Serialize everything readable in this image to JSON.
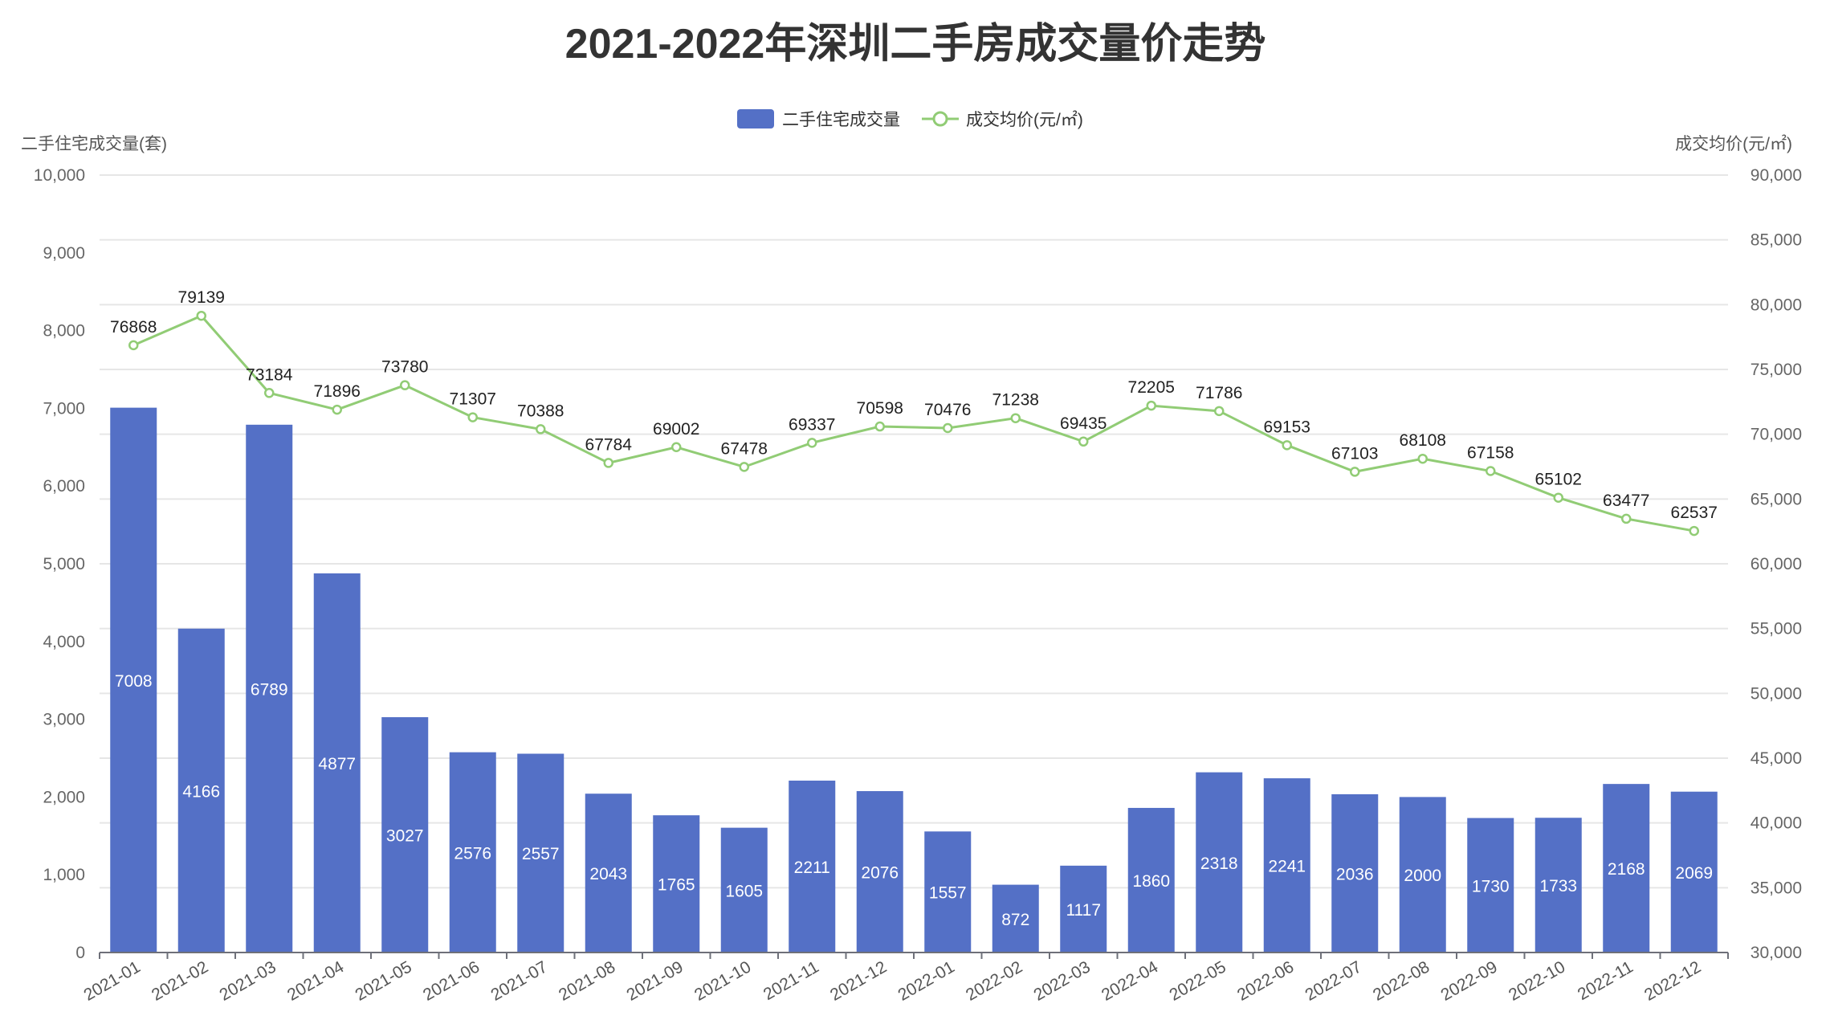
{
  "chart_data": {
    "type": "bar+line",
    "title": "2021-2022年深圳二手房成交量价走势",
    "categories": [
      "2021-01",
      "2021-02",
      "2021-03",
      "2021-04",
      "2021-05",
      "2021-06",
      "2021-07",
      "2021-08",
      "2021-09",
      "2021-10",
      "2021-11",
      "2021-12",
      "2022-01",
      "2022-02",
      "2022-03",
      "2022-04",
      "2022-05",
      "2022-06",
      "2022-07",
      "2022-08",
      "2022-09",
      "2022-10",
      "2022-11",
      "2022-12"
    ],
    "series": [
      {
        "name": "二手住宅成交量",
        "type": "bar",
        "axis": "left",
        "color": "#5470c6",
        "values": [
          7008,
          4166,
          6789,
          4877,
          3027,
          2576,
          2557,
          2043,
          1765,
          1605,
          2211,
          2076,
          1557,
          872,
          1117,
          1860,
          2318,
          2241,
          2036,
          2000,
          1730,
          1733,
          2168,
          2069
        ]
      },
      {
        "name": "成交均价(元/㎡)",
        "type": "line",
        "axis": "right",
        "color": "#91cc75",
        "values": [
          76868,
          79139,
          73184,
          71896,
          73780,
          71307,
          70388,
          67784,
          69002,
          67478,
          69337,
          70598,
          70476,
          71238,
          69435,
          72205,
          71786,
          69153,
          67103,
          68108,
          67158,
          65102,
          63477,
          62537
        ]
      }
    ],
    "ylabel": "二手住宅成交量(套)",
    "y2label": "成交均价(元/㎡)",
    "ylim": [
      0,
      10000
    ],
    "y2lim": [
      30000,
      90000
    ],
    "yticks": [
      "0",
      "1,000",
      "2,000",
      "3,000",
      "4,000",
      "5,000",
      "6,000",
      "7,000",
      "8,000",
      "9,000",
      "10,000"
    ],
    "y2ticks": [
      "30,000",
      "35,000",
      "40,000",
      "45,000",
      "50,000",
      "55,000",
      "60,000",
      "65,000",
      "70,000",
      "75,000",
      "80,000",
      "85,000",
      "90,000"
    ],
    "grid": true,
    "legend_position": "top-center"
  }
}
